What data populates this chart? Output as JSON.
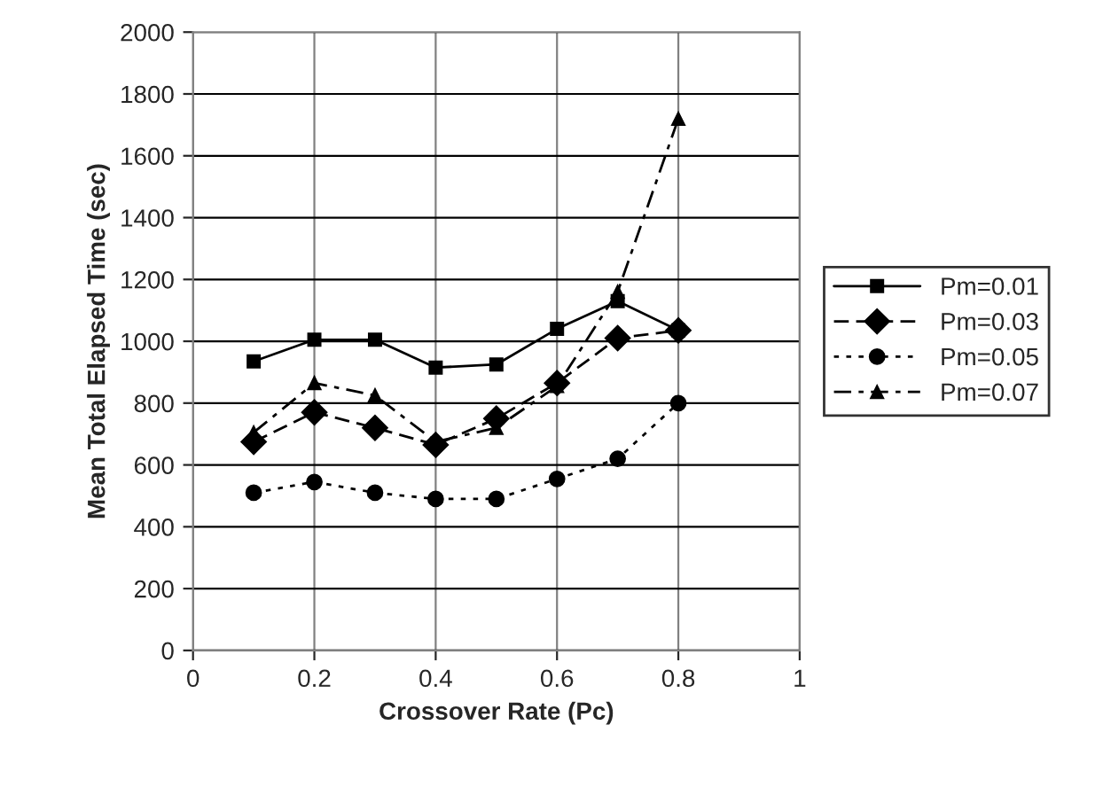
{
  "chart_data": {
    "type": "line",
    "xlabel": "Crossover Rate (Pc)",
    "ylabel": "Mean Total Elapsed Time (sec)",
    "x": [
      0.1,
      0.2,
      0.3,
      0.4,
      0.5,
      0.6,
      0.7,
      0.8
    ],
    "series": [
      {
        "name": "Pm=0.01",
        "color": "#000000",
        "marker": "square",
        "line_style": "solid",
        "values": [
          935,
          1005,
          1005,
          915,
          925,
          1040,
          1130,
          1035
        ]
      },
      {
        "name": "Pm=0.03",
        "color": "#000000",
        "marker": "diamond",
        "line_style": "dashed",
        "values": [
          675,
          770,
          720,
          665,
          750,
          865,
          1010,
          1035
        ]
      },
      {
        "name": "Pm=0.05",
        "color": "#000000",
        "marker": "circle",
        "line_style": "dotted",
        "values": [
          510,
          545,
          510,
          490,
          490,
          555,
          620,
          800
        ]
      },
      {
        "name": "Pm=0.07",
        "color": "#000000",
        "marker": "triangle",
        "line_style": "dashdot",
        "values": [
          705,
          865,
          825,
          675,
          720,
          855,
          1160,
          1720
        ]
      }
    ],
    "xlim": [
      0,
      1
    ],
    "xticks": [
      0,
      0.2,
      0.4,
      0.6,
      0.8,
      1
    ],
    "ylim": [
      0,
      2000
    ],
    "yticks": [
      0,
      200,
      400,
      600,
      800,
      1000,
      1200,
      1400,
      1600,
      1800,
      2000
    ],
    "grid": true,
    "legend": "right"
  }
}
